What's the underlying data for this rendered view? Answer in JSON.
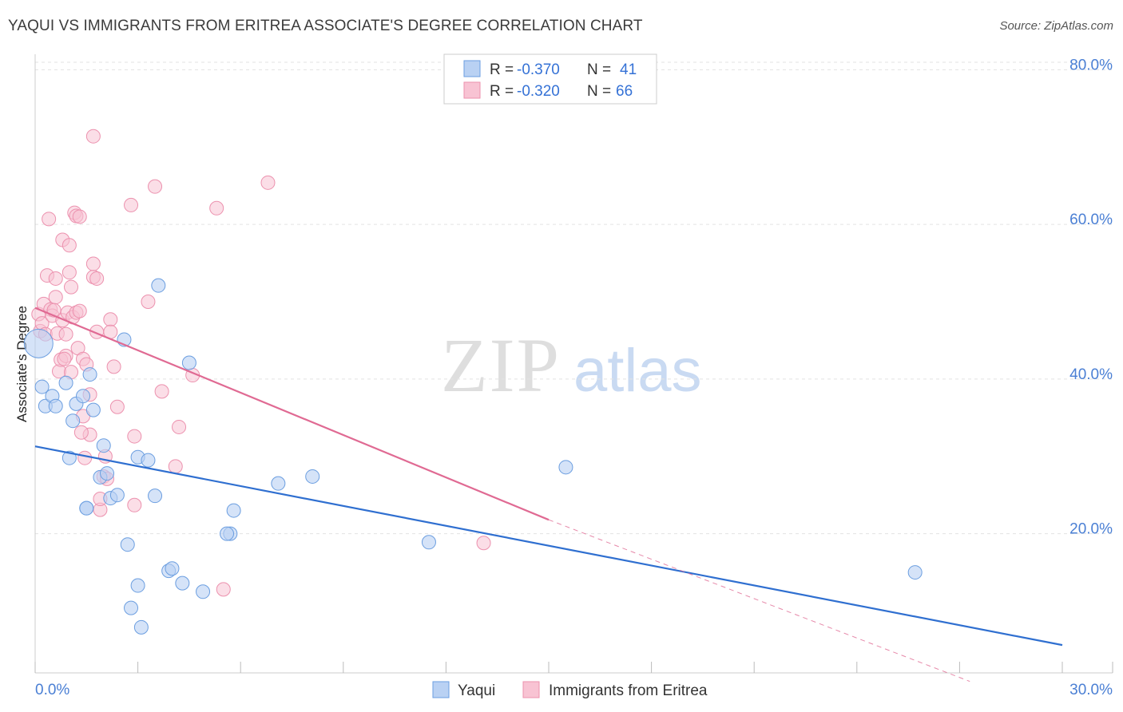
{
  "title": "YAQUI VS IMMIGRANTS FROM ERITREA ASSOCIATE'S DEGREE CORRELATION CHART",
  "source": "Source: ZipAtlas.com",
  "watermark": {
    "zip": "ZIP",
    "atlas": "atlas"
  },
  "legend_top": [
    {
      "r_label": "R =",
      "r_value": "-0.370",
      "n_label": "N =",
      "n_value": "41"
    },
    {
      "r_label": "R =",
      "r_value": "-0.320",
      "n_label": "N =",
      "n_value": "66"
    }
  ],
  "colors": {
    "yaqui_fill": "#b9d1f3",
    "yaqui_stroke": "#6b9ee0",
    "yaqui_line": "#2f6fd0",
    "eritrea_fill": "#f8c3d3",
    "eritrea_stroke": "#ec91ae",
    "eritrea_line": "#e06a93",
    "grid": "#e3e3e3",
    "axis_text": "#4a7fd4"
  },
  "chart_data": {
    "type": "scatter",
    "title": "YAQUI VS IMMIGRANTS FROM ERITREA ASSOCIATE'S DEGREE CORRELATION CHART",
    "xlabel": "",
    "ylabel": "Associate's Degree",
    "xlim": [
      0,
      30
    ],
    "ylim": [
      2,
      82
    ],
    "x_tick_labels": [
      "0.0%",
      "30.0%"
    ],
    "y_ticks": [
      20,
      40,
      60,
      80
    ],
    "y_tick_labels": [
      "20.0%",
      "40.0%",
      "60.0%",
      "80.0%"
    ],
    "grid": true,
    "legend_position": "top-center",
    "series": [
      {
        "name": "Yaqui",
        "r": -0.37,
        "n": 41,
        "trend": {
          "x0": 0,
          "y0": 31.3,
          "x1": 30,
          "y1": 5.6
        },
        "points": [
          [
            0.1,
            44.6
          ],
          [
            0.2,
            39.0
          ],
          [
            0.3,
            36.5
          ],
          [
            0.5,
            37.8
          ],
          [
            0.6,
            36.5
          ],
          [
            0.9,
            39.5
          ],
          [
            1.0,
            29.8
          ],
          [
            1.1,
            34.6
          ],
          [
            1.2,
            36.8
          ],
          [
            1.4,
            37.8
          ],
          [
            1.5,
            23.3
          ],
          [
            1.6,
            40.6
          ],
          [
            1.7,
            36.0
          ],
          [
            1.9,
            27.3
          ],
          [
            2.0,
            31.4
          ],
          [
            2.1,
            27.8
          ],
          [
            2.2,
            24.6
          ],
          [
            2.4,
            25.0
          ],
          [
            2.6,
            45.1
          ],
          [
            2.7,
            18.6
          ],
          [
            3.0,
            13.3
          ],
          [
            2.8,
            10.4
          ],
          [
            3.1,
            7.9
          ],
          [
            3.0,
            29.9
          ],
          [
            3.3,
            29.5
          ],
          [
            3.5,
            24.9
          ],
          [
            3.6,
            52.1
          ],
          [
            3.9,
            15.2
          ],
          [
            4.0,
            15.5
          ],
          [
            4.3,
            13.6
          ],
          [
            4.5,
            42.1
          ],
          [
            4.9,
            12.5
          ],
          [
            5.7,
            20.0
          ],
          [
            5.6,
            20.0
          ],
          [
            5.8,
            23.0
          ],
          [
            7.1,
            26.5
          ],
          [
            8.1,
            27.4
          ],
          [
            11.5,
            18.9
          ],
          [
            15.5,
            28.6
          ],
          [
            25.7,
            15.0
          ],
          [
            1.5,
            23.3
          ]
        ]
      },
      {
        "name": "Immigrants from Eritrea",
        "r": -0.32,
        "n": 66,
        "trend": {
          "x0": 0,
          "y0": 49.2,
          "x1": 15,
          "y1": 21.8
        },
        "trend_dashed": {
          "x0": 15,
          "y0": 21.8,
          "x1": 27.3,
          "y1": 0.9
        },
        "points": [
          [
            0.1,
            48.4
          ],
          [
            0.15,
            46.2
          ],
          [
            0.2,
            47.2
          ],
          [
            0.25,
            49.7
          ],
          [
            0.3,
            45.8
          ],
          [
            0.35,
            53.4
          ],
          [
            0.4,
            60.7
          ],
          [
            0.45,
            49.0
          ],
          [
            0.5,
            48.2
          ],
          [
            0.6,
            53.0
          ],
          [
            0.6,
            50.6
          ],
          [
            0.65,
            45.9
          ],
          [
            0.7,
            41.0
          ],
          [
            0.75,
            42.5
          ],
          [
            0.8,
            58.0
          ],
          [
            0.8,
            47.6
          ],
          [
            0.9,
            45.8
          ],
          [
            0.9,
            43.0
          ],
          [
            0.95,
            48.6
          ],
          [
            1.0,
            57.3
          ],
          [
            1.0,
            53.8
          ],
          [
            1.05,
            51.9
          ],
          [
            1.1,
            48.0
          ],
          [
            1.15,
            61.5
          ],
          [
            1.2,
            61.1
          ],
          [
            1.2,
            48.6
          ],
          [
            1.25,
            44.0
          ],
          [
            1.3,
            48.8
          ],
          [
            1.3,
            61.0
          ],
          [
            1.4,
            42.6
          ],
          [
            1.4,
            35.2
          ],
          [
            1.45,
            29.8
          ],
          [
            1.5,
            41.9
          ],
          [
            1.6,
            32.8
          ],
          [
            1.6,
            38.0
          ],
          [
            1.7,
            53.2
          ],
          [
            1.8,
            53.0
          ],
          [
            1.9,
            23.1
          ],
          [
            2.0,
            27.4
          ],
          [
            1.7,
            71.4
          ],
          [
            1.7,
            54.9
          ],
          [
            1.8,
            46.1
          ],
          [
            1.9,
            24.5
          ],
          [
            2.1,
            27.1
          ],
          [
            2.2,
            47.7
          ],
          [
            2.2,
            46.1
          ],
          [
            2.3,
            41.6
          ],
          [
            2.4,
            36.4
          ],
          [
            2.9,
            32.6
          ],
          [
            2.9,
            23.7
          ],
          [
            2.8,
            62.5
          ],
          [
            3.3,
            50.0
          ],
          [
            3.5,
            64.9
          ],
          [
            3.7,
            38.4
          ],
          [
            4.1,
            28.7
          ],
          [
            4.2,
            33.8
          ],
          [
            4.6,
            40.5
          ],
          [
            5.3,
            62.1
          ],
          [
            5.5,
            12.8
          ],
          [
            6.8,
            65.4
          ],
          [
            13.1,
            18.8
          ],
          [
            0.55,
            48.9
          ],
          [
            1.05,
            40.9
          ],
          [
            0.85,
            42.6
          ],
          [
            1.35,
            33.1
          ],
          [
            2.05,
            30.0
          ]
        ]
      }
    ]
  },
  "bottom_legend": [
    {
      "label": "Yaqui"
    },
    {
      "label": "Immigrants from Eritrea"
    }
  ]
}
